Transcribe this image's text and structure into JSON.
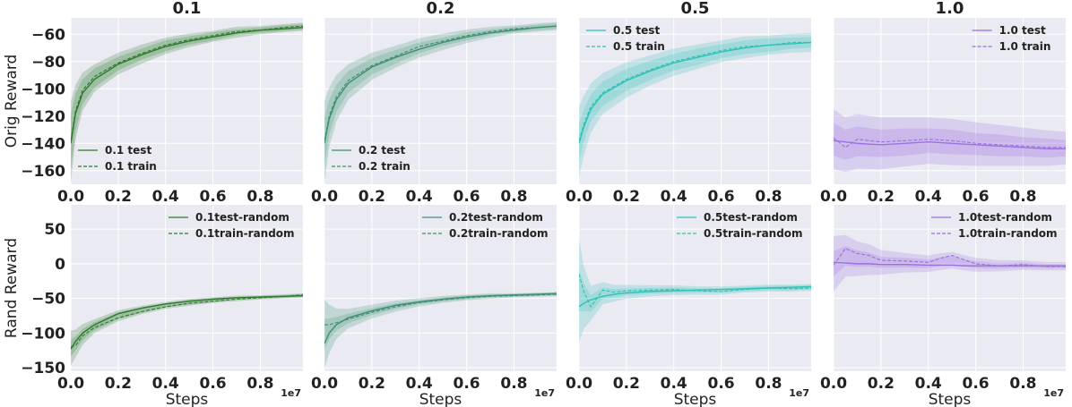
{
  "chart_data": {
    "type": "line",
    "x_scale_label": "1e7",
    "x_ticks": [
      "0.0",
      "0.2",
      "0.4",
      "0.6",
      "0.8"
    ],
    "x_tick_values": [
      0.0,
      0.2,
      0.4,
      0.6,
      0.8
    ],
    "xlim": [
      0.0,
      0.98
    ],
    "xlabel": "Steps",
    "rows": [
      {
        "ylabel": "Orig Reward",
        "ylim": [
          -170,
          -48
        ],
        "y_ticks": [
          "-60",
          "-80",
          "-100",
          "-120",
          "-140",
          "-160"
        ],
        "y_tick_values": [
          -60,
          -80,
          -100,
          -120,
          -140,
          -160
        ]
      },
      {
        "ylabel": "Rand Reward",
        "ylim": [
          -155,
          85
        ],
        "y_ticks": [
          "50",
          "0",
          "-50",
          "-100",
          "-150"
        ],
        "y_tick_values": [
          50,
          0,
          -50,
          -100,
          -150
        ]
      }
    ],
    "columns": [
      {
        "title": "0.1",
        "color": "#2b7a2b"
      },
      {
        "title": "0.2",
        "color": "#3c9070"
      },
      {
        "title": "0.5",
        "color": "#2fc1b5"
      },
      {
        "title": "1.0",
        "color": "#9b6fe0"
      }
    ],
    "panels": [
      {
        "row": 0,
        "col": 0,
        "legend_loc": "lower-left",
        "x": [
          0,
          0.02,
          0.05,
          0.1,
          0.2,
          0.3,
          0.4,
          0.5,
          0.6,
          0.7,
          0.8,
          0.9,
          0.98
        ],
        "series": [
          {
            "name": "0.1 test",
            "dash": false,
            "values": [
              -140,
              -118,
              -103,
              -93,
              -82,
              -75,
              -69,
              -65,
              -62,
              -59,
              -57,
              -56,
              -55
            ]
          },
          {
            "name": "0.1 train",
            "dash": true,
            "values": [
              -138,
              -116,
              -101,
              -91,
              -81,
              -74,
              -68,
              -64,
              -61,
              -58,
              -57,
              -55,
              -54
            ]
          }
        ],
        "band": [
          [
            30,
            20,
            14,
            10,
            8,
            7,
            6,
            5,
            4,
            4,
            3,
            3,
            3
          ],
          [
            20,
            14,
            9,
            7,
            5,
            4,
            4,
            3,
            3,
            2,
            2,
            2,
            2
          ]
        ]
      },
      {
        "row": 0,
        "col": 1,
        "legend_loc": "lower-left",
        "x": [
          0,
          0.02,
          0.05,
          0.1,
          0.2,
          0.3,
          0.4,
          0.5,
          0.6,
          0.7,
          0.8,
          0.9,
          0.98
        ],
        "series": [
          {
            "name": "0.2 test",
            "dash": false,
            "values": [
              -140,
              -122,
              -108,
              -96,
              -84,
              -77,
              -71,
              -66,
              -62,
              -59,
              -57,
              -55,
              -54
            ]
          },
          {
            "name": "0.2 train",
            "dash": true,
            "values": [
              -138,
              -120,
              -106,
              -94,
              -83,
              -76,
              -69,
              -65,
              -61,
              -58,
              -56,
              -55,
              -54
            ]
          }
        ],
        "band": [
          [
            30,
            22,
            17,
            13,
            10,
            8,
            7,
            6,
            5,
            4,
            3,
            3,
            3
          ],
          [
            18,
            13,
            10,
            8,
            6,
            5,
            4,
            3,
            3,
            2,
            2,
            2,
            2
          ]
        ]
      },
      {
        "row": 0,
        "col": 2,
        "legend_loc": "upper-left",
        "x": [
          0,
          0.02,
          0.05,
          0.1,
          0.2,
          0.3,
          0.4,
          0.5,
          0.6,
          0.7,
          0.8,
          0.9,
          0.98
        ],
        "series": [
          {
            "name": "0.5 test",
            "dash": false,
            "values": [
              -140,
              -128,
              -115,
              -104,
              -94,
              -87,
              -81,
              -77,
              -73,
              -70,
              -68,
              -67,
              -66
            ]
          },
          {
            "name": "0.5 train",
            "dash": true,
            "values": [
              -138,
              -126,
              -113,
              -103,
              -93,
              -86,
              -80,
              -76,
              -72,
              -69,
              -68,
              -66,
              -66
            ]
          }
        ],
        "band": [
          [
            26,
            22,
            18,
            15,
            13,
            11,
            10,
            9,
            8,
            8,
            7,
            7,
            7
          ],
          [
            14,
            12,
            10,
            9,
            8,
            7,
            6,
            6,
            5,
            5,
            5,
            4,
            4
          ]
        ]
      },
      {
        "row": 0,
        "col": 3,
        "legend_loc": "upper-right",
        "x": [
          0,
          0.05,
          0.1,
          0.2,
          0.3,
          0.4,
          0.5,
          0.6,
          0.7,
          0.8,
          0.9,
          0.98
        ],
        "series": [
          {
            "name": "1.0 test",
            "dash": false,
            "values": [
              -138,
              -139,
              -140,
              -141,
              -140,
              -139,
              -140,
              -141,
              -142,
              -143,
              -144,
              -144
            ]
          },
          {
            "name": "1.0 train",
            "dash": true,
            "values": [
              -136,
              -143,
              -137,
              -139,
              -138,
              -137,
              -138,
              -140,
              -141,
              -142,
              -143,
              -143
            ]
          }
        ],
        "band": [
          [
            22,
            20,
            20,
            19,
            18,
            17,
            17,
            16,
            15,
            14,
            13,
            12
          ],
          [
            12,
            11,
            11,
            10,
            10,
            9,
            9,
            8,
            8,
            7,
            7,
            6
          ]
        ]
      },
      {
        "row": 1,
        "col": 0,
        "legend_loc": "upper-right",
        "x": [
          0,
          0.02,
          0.05,
          0.1,
          0.2,
          0.3,
          0.4,
          0.5,
          0.6,
          0.7,
          0.8,
          0.9,
          0.98
        ],
        "series": [
          {
            "name": "0.1test-random",
            "dash": false,
            "values": [
              -123,
              -112,
              -100,
              -88,
              -72,
              -64,
              -58,
              -54,
              -51,
              -49,
              -48,
              -47,
              -46
            ]
          },
          {
            "name": "0.1train-random",
            "dash": true,
            "values": [
              -120,
              -118,
              -104,
              -92,
              -78,
              -69,
              -62,
              -57,
              -54,
              -51,
              -49,
              -47,
              -45
            ]
          }
        ],
        "band": [
          [
            25,
            20,
            15,
            10,
            8,
            6,
            5,
            5,
            4,
            4,
            3,
            3,
            3
          ],
          [
            12,
            10,
            8,
            6,
            5,
            4,
            3,
            3,
            3,
            2,
            2,
            2,
            2
          ]
        ]
      },
      {
        "row": 1,
        "col": 1,
        "legend_loc": "upper-right",
        "x": [
          0,
          0.02,
          0.05,
          0.1,
          0.2,
          0.3,
          0.4,
          0.5,
          0.6,
          0.7,
          0.8,
          0.9,
          0.98
        ],
        "series": [
          {
            "name": "0.2test-random",
            "dash": false,
            "values": [
              -115,
              -100,
              -88,
              -78,
              -68,
              -60,
              -55,
              -51,
              -48,
              -46,
              -45,
              -44,
              -43
            ]
          },
          {
            "name": "0.2train-random",
            "dash": true,
            "values": [
              -88,
              -88,
              -85,
              -80,
              -70,
              -62,
              -56,
              -52,
              -49,
              -47,
              -46,
              -45,
              -44
            ]
          }
        ],
        "band": [
          [
            50,
            35,
            22,
            14,
            10,
            8,
            6,
            5,
            4,
            4,
            3,
            3,
            3
          ],
          [
            22,
            15,
            10,
            7,
            5,
            4,
            3,
            3,
            3,
            2,
            2,
            2,
            2
          ]
        ]
      },
      {
        "row": 1,
        "col": 2,
        "legend_loc": "upper-right",
        "x": [
          0,
          0.02,
          0.05,
          0.1,
          0.15,
          0.2,
          0.3,
          0.4,
          0.5,
          0.6,
          0.7,
          0.8,
          0.9,
          0.98
        ],
        "series": [
          {
            "name": "0.5test-random",
            "dash": false,
            "values": [
              -62,
              -57,
              -52,
              -47,
              -44,
              -42,
              -40,
              -39,
              -38,
              -37,
              -36,
              -35,
              -34,
              -33
            ]
          },
          {
            "name": "0.5train-random",
            "dash": true,
            "values": [
              -15,
              -40,
              -62,
              -38,
              -41,
              -39,
              -38,
              -37,
              -39,
              -40,
              -37,
              -35,
              -36,
              -35
            ]
          }
        ],
        "band": [
          [
            75,
            45,
            25,
            16,
            12,
            10,
            8,
            7,
            6,
            6,
            5,
            5,
            5,
            5
          ],
          [
            30,
            20,
            12,
            8,
            6,
            5,
            4,
            4,
            3,
            3,
            3,
            3,
            3,
            3
          ]
        ]
      },
      {
        "row": 1,
        "col": 3,
        "legend_loc": "upper-right",
        "x": [
          0,
          0.05,
          0.1,
          0.15,
          0.2,
          0.3,
          0.4,
          0.45,
          0.5,
          0.55,
          0.6,
          0.7,
          0.8,
          0.9,
          0.98
        ],
        "series": [
          {
            "name": "1.0test-random",
            "dash": false,
            "values": [
              2,
              1,
              0,
              0,
              -1,
              -1,
              -2,
              -2,
              -2,
              -3,
              -3,
              -3,
              -3,
              -3,
              -3
            ]
          },
          {
            "name": "1.0train-random",
            "dash": true,
            "values": [
              -2,
              22,
              15,
              12,
              5,
              4,
              2,
              8,
              12,
              6,
              0,
              -3,
              -1,
              -4,
              -4
            ]
          }
        ],
        "band": [
          [
            40,
            30,
            25,
            22,
            18,
            14,
            12,
            12,
            12,
            11,
            10,
            8,
            7,
            6,
            6
          ],
          [
            18,
            14,
            12,
            10,
            8,
            7,
            6,
            6,
            6,
            5,
            5,
            4,
            4,
            3,
            3
          ]
        ]
      }
    ]
  }
}
